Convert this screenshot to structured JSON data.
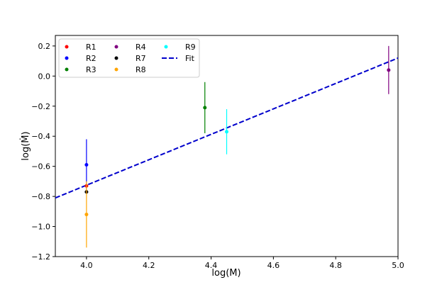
{
  "chart_data": {
    "type": "scatter",
    "xlabel": "log(M)",
    "ylabel": "log(Ṁ)",
    "xlim": [
      3.9,
      5.0
    ],
    "ylim": [
      -1.2,
      0.27
    ],
    "xticks": [
      4.0,
      4.2,
      4.4,
      4.6,
      4.8,
      5.0
    ],
    "xtick_labels": [
      "4.0",
      "4.2",
      "4.4",
      "4.6",
      "4.8",
      "5.0"
    ],
    "yticks": [
      -1.2,
      -1.0,
      -0.8,
      -0.6,
      -0.4,
      -0.2,
      0.0,
      0.2
    ],
    "ytick_labels": [
      "−1.2",
      "−1.0",
      "−0.8",
      "−0.6",
      "−0.4",
      "−0.2",
      "0.0",
      "0.2"
    ],
    "grid": false,
    "legend_position": "top-left",
    "series": [
      {
        "name": "R1",
        "color": "#ff0000",
        "x": 4.0,
        "y": -0.73,
        "yerr": 0.0
      },
      {
        "name": "R2",
        "color": "#0000ff",
        "x": 4.0,
        "y": -0.59,
        "yerr": 0.17
      },
      {
        "name": "R3",
        "color": "#008000",
        "x": 4.38,
        "y": -0.21,
        "yerr": 0.17
      },
      {
        "name": "R4",
        "color": "#800080",
        "x": 4.97,
        "y": 0.04,
        "yerr": 0.16
      },
      {
        "name": "R7",
        "color": "#000000",
        "x": 4.0,
        "y": -0.77,
        "yerr": 0.0
      },
      {
        "name": "R8",
        "color": "#ffa500",
        "x": 4.0,
        "y": -0.92,
        "yerr": 0.22
      },
      {
        "name": "R9",
        "color": "#00ffff",
        "x": 4.45,
        "y": -0.37,
        "yerr": 0.15
      }
    ],
    "fit": {
      "name": "Fit",
      "color": "#0000cc",
      "style": "dashed",
      "x": [
        3.9,
        5.0
      ],
      "y": [
        -0.81,
        0.12
      ]
    },
    "legend_order": [
      "R1",
      "R2",
      "R3",
      "R4",
      "R7",
      "R8",
      "R9",
      "Fit"
    ]
  }
}
